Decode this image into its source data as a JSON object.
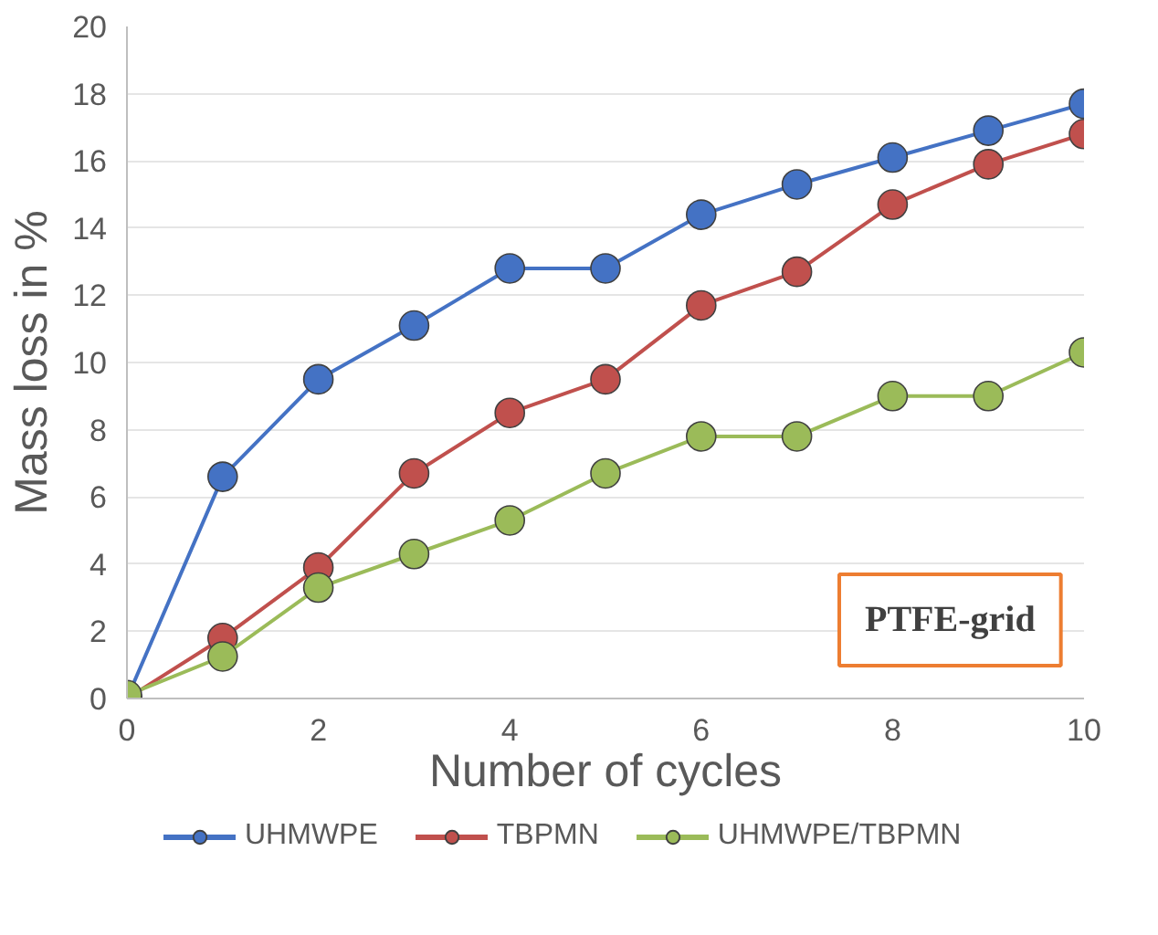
{
  "chart_data": {
    "type": "line",
    "xlabel": "Number of cycles",
    "ylabel": "Mass loss in %",
    "x": [
      0,
      1,
      2,
      3,
      4,
      5,
      6,
      7,
      8,
      9,
      10
    ],
    "xlim": [
      0,
      10
    ],
    "xticks": [
      0,
      2,
      4,
      6,
      8,
      10
    ],
    "ylim": [
      0,
      20
    ],
    "yticks": [
      0,
      2,
      4,
      6,
      8,
      10,
      12,
      14,
      16,
      18,
      20
    ],
    "grid": "y",
    "legend": "bottom",
    "marker": "circle",
    "line_style": "solid",
    "annotations": [
      "PTFE-grid"
    ],
    "series": [
      {
        "name": "UHMWPE",
        "color": "#4472c4",
        "values": [
          0,
          6.6,
          9.5,
          11.1,
          12.8,
          12.8,
          14.4,
          15.3,
          16.1,
          16.9,
          17.7
        ]
      },
      {
        "name": "TBPMN",
        "color": "#c0504d",
        "values": [
          0,
          1.8,
          3.9,
          6.7,
          8.5,
          9.5,
          11.7,
          12.7,
          14.7,
          15.9,
          16.8
        ]
      },
      {
        "name": "UHMWPE/TBPMN",
        "color": "#9bbb59",
        "values": [
          0.1,
          1.25,
          3.3,
          4.3,
          5.3,
          6.7,
          7.8,
          7.8,
          9.0,
          9.0,
          10.3
        ]
      }
    ]
  }
}
